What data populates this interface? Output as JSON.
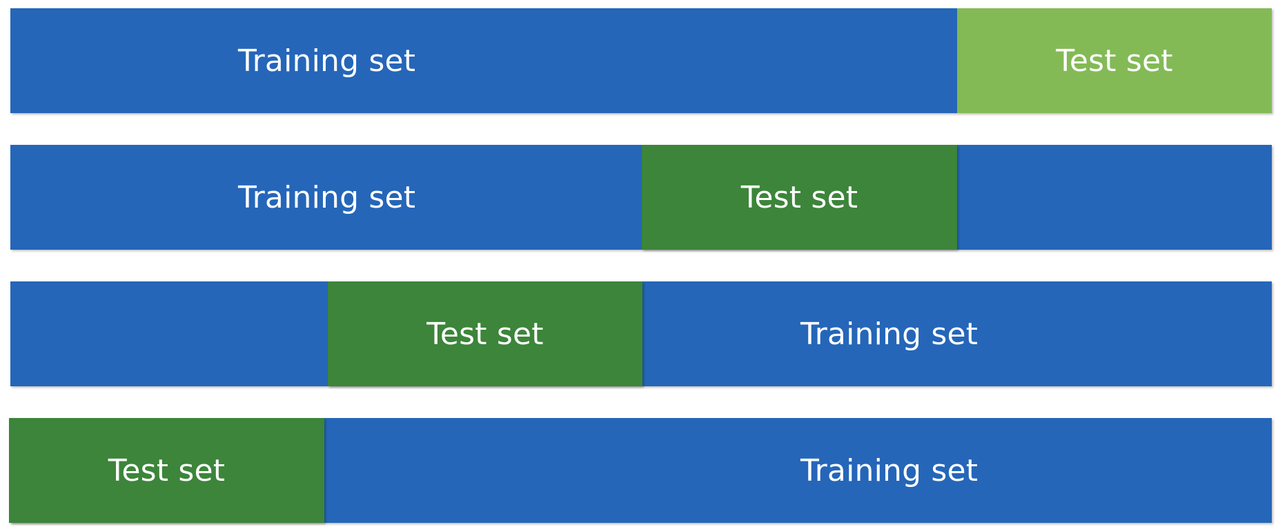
{
  "labels": {
    "training": "Training set",
    "test": "Test set"
  },
  "colors": {
    "training": "#2566b9",
    "test_dark": "#3c853a",
    "test_light": "#83ba56"
  },
  "folds": [
    {
      "test_fraction_start": 0.75,
      "test_fraction_end": 1.0,
      "test_color": "light",
      "label_side": "left"
    },
    {
      "test_fraction_start": 0.5,
      "test_fraction_end": 0.75,
      "test_color": "dark",
      "label_side": "left"
    },
    {
      "test_fraction_start": 0.25,
      "test_fraction_end": 0.5,
      "test_color": "dark",
      "label_side": "right"
    },
    {
      "test_fraction_start": 0.0,
      "test_fraction_end": 0.25,
      "test_color": "dark",
      "label_side": "right"
    }
  ]
}
